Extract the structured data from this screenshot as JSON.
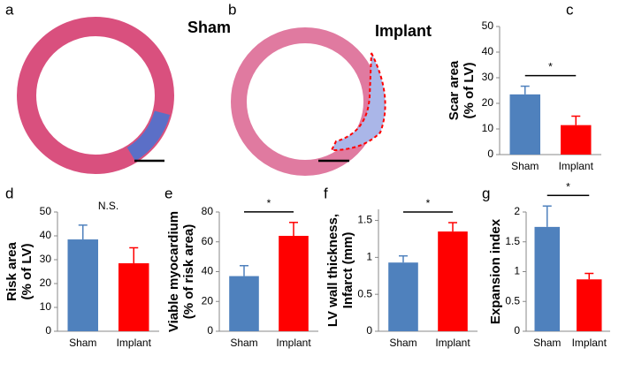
{
  "panels": [
    {
      "label": "a",
      "title": "Sham"
    },
    {
      "label": "b",
      "title": "Implant"
    }
  ],
  "chart_data": [
    {
      "type": "bar",
      "label": "c",
      "ylabel": [
        "Scar area",
        "(% of LV)"
      ],
      "categories": [
        "Sham",
        "Implant"
      ],
      "values": [
        23.5,
        11.5
      ],
      "errors": [
        3.2,
        3.5
      ],
      "colors": [
        "#4f81bd",
        "#ff0000"
      ],
      "ylim": [
        0,
        50
      ],
      "yticks": [
        0,
        10,
        20,
        30,
        40,
        50
      ],
      "annotation": "*"
    },
    {
      "type": "bar",
      "label": "d",
      "ylabel": [
        "Risk area",
        "(% of LV)"
      ],
      "categories": [
        "Sham",
        "Implant"
      ],
      "values": [
        38.5,
        28.5
      ],
      "errors": [
        6,
        6.5
      ],
      "colors": [
        "#4f81bd",
        "#ff0000"
      ],
      "ylim": [
        0,
        50
      ],
      "yticks": [
        0,
        10,
        20,
        30,
        40,
        50
      ],
      "annotation": "N.S."
    },
    {
      "type": "bar",
      "label": "e",
      "ylabel": [
        "Viable myocardium",
        "(% of risk area)"
      ],
      "categories": [
        "Sham",
        "Implant"
      ],
      "values": [
        37,
        64
      ],
      "errors": [
        7,
        9
      ],
      "colors": [
        "#4f81bd",
        "#ff0000"
      ],
      "ylim": [
        0,
        80
      ],
      "yticks": [
        0,
        20,
        40,
        60,
        80
      ],
      "annotation": "*"
    },
    {
      "type": "bar",
      "label": "f",
      "ylabel": [
        "LV wall thickness,",
        "Infarct  (mm)"
      ],
      "categories": [
        "Sham",
        "Implant"
      ],
      "values": [
        0.93,
        1.35
      ],
      "errors": [
        0.09,
        0.12
      ],
      "colors": [
        "#4f81bd",
        "#ff0000"
      ],
      "ylim": [
        0,
        1.65
      ],
      "yticks": [
        0,
        0.5,
        1,
        1.5
      ],
      "annotation": "*"
    },
    {
      "type": "bar",
      "label": "g",
      "ylabel": [
        "Expansion index"
      ],
      "categories": [
        "Sham",
        "Implant"
      ],
      "values": [
        1.75,
        0.87
      ],
      "errors": [
        0.35,
        0.1
      ],
      "colors": [
        "#4f81bd",
        "#ff0000"
      ],
      "ylim": [
        0,
        2
      ],
      "yticks": [
        0,
        0.5,
        1,
        1.5,
        2
      ],
      "annotation": "*"
    }
  ]
}
